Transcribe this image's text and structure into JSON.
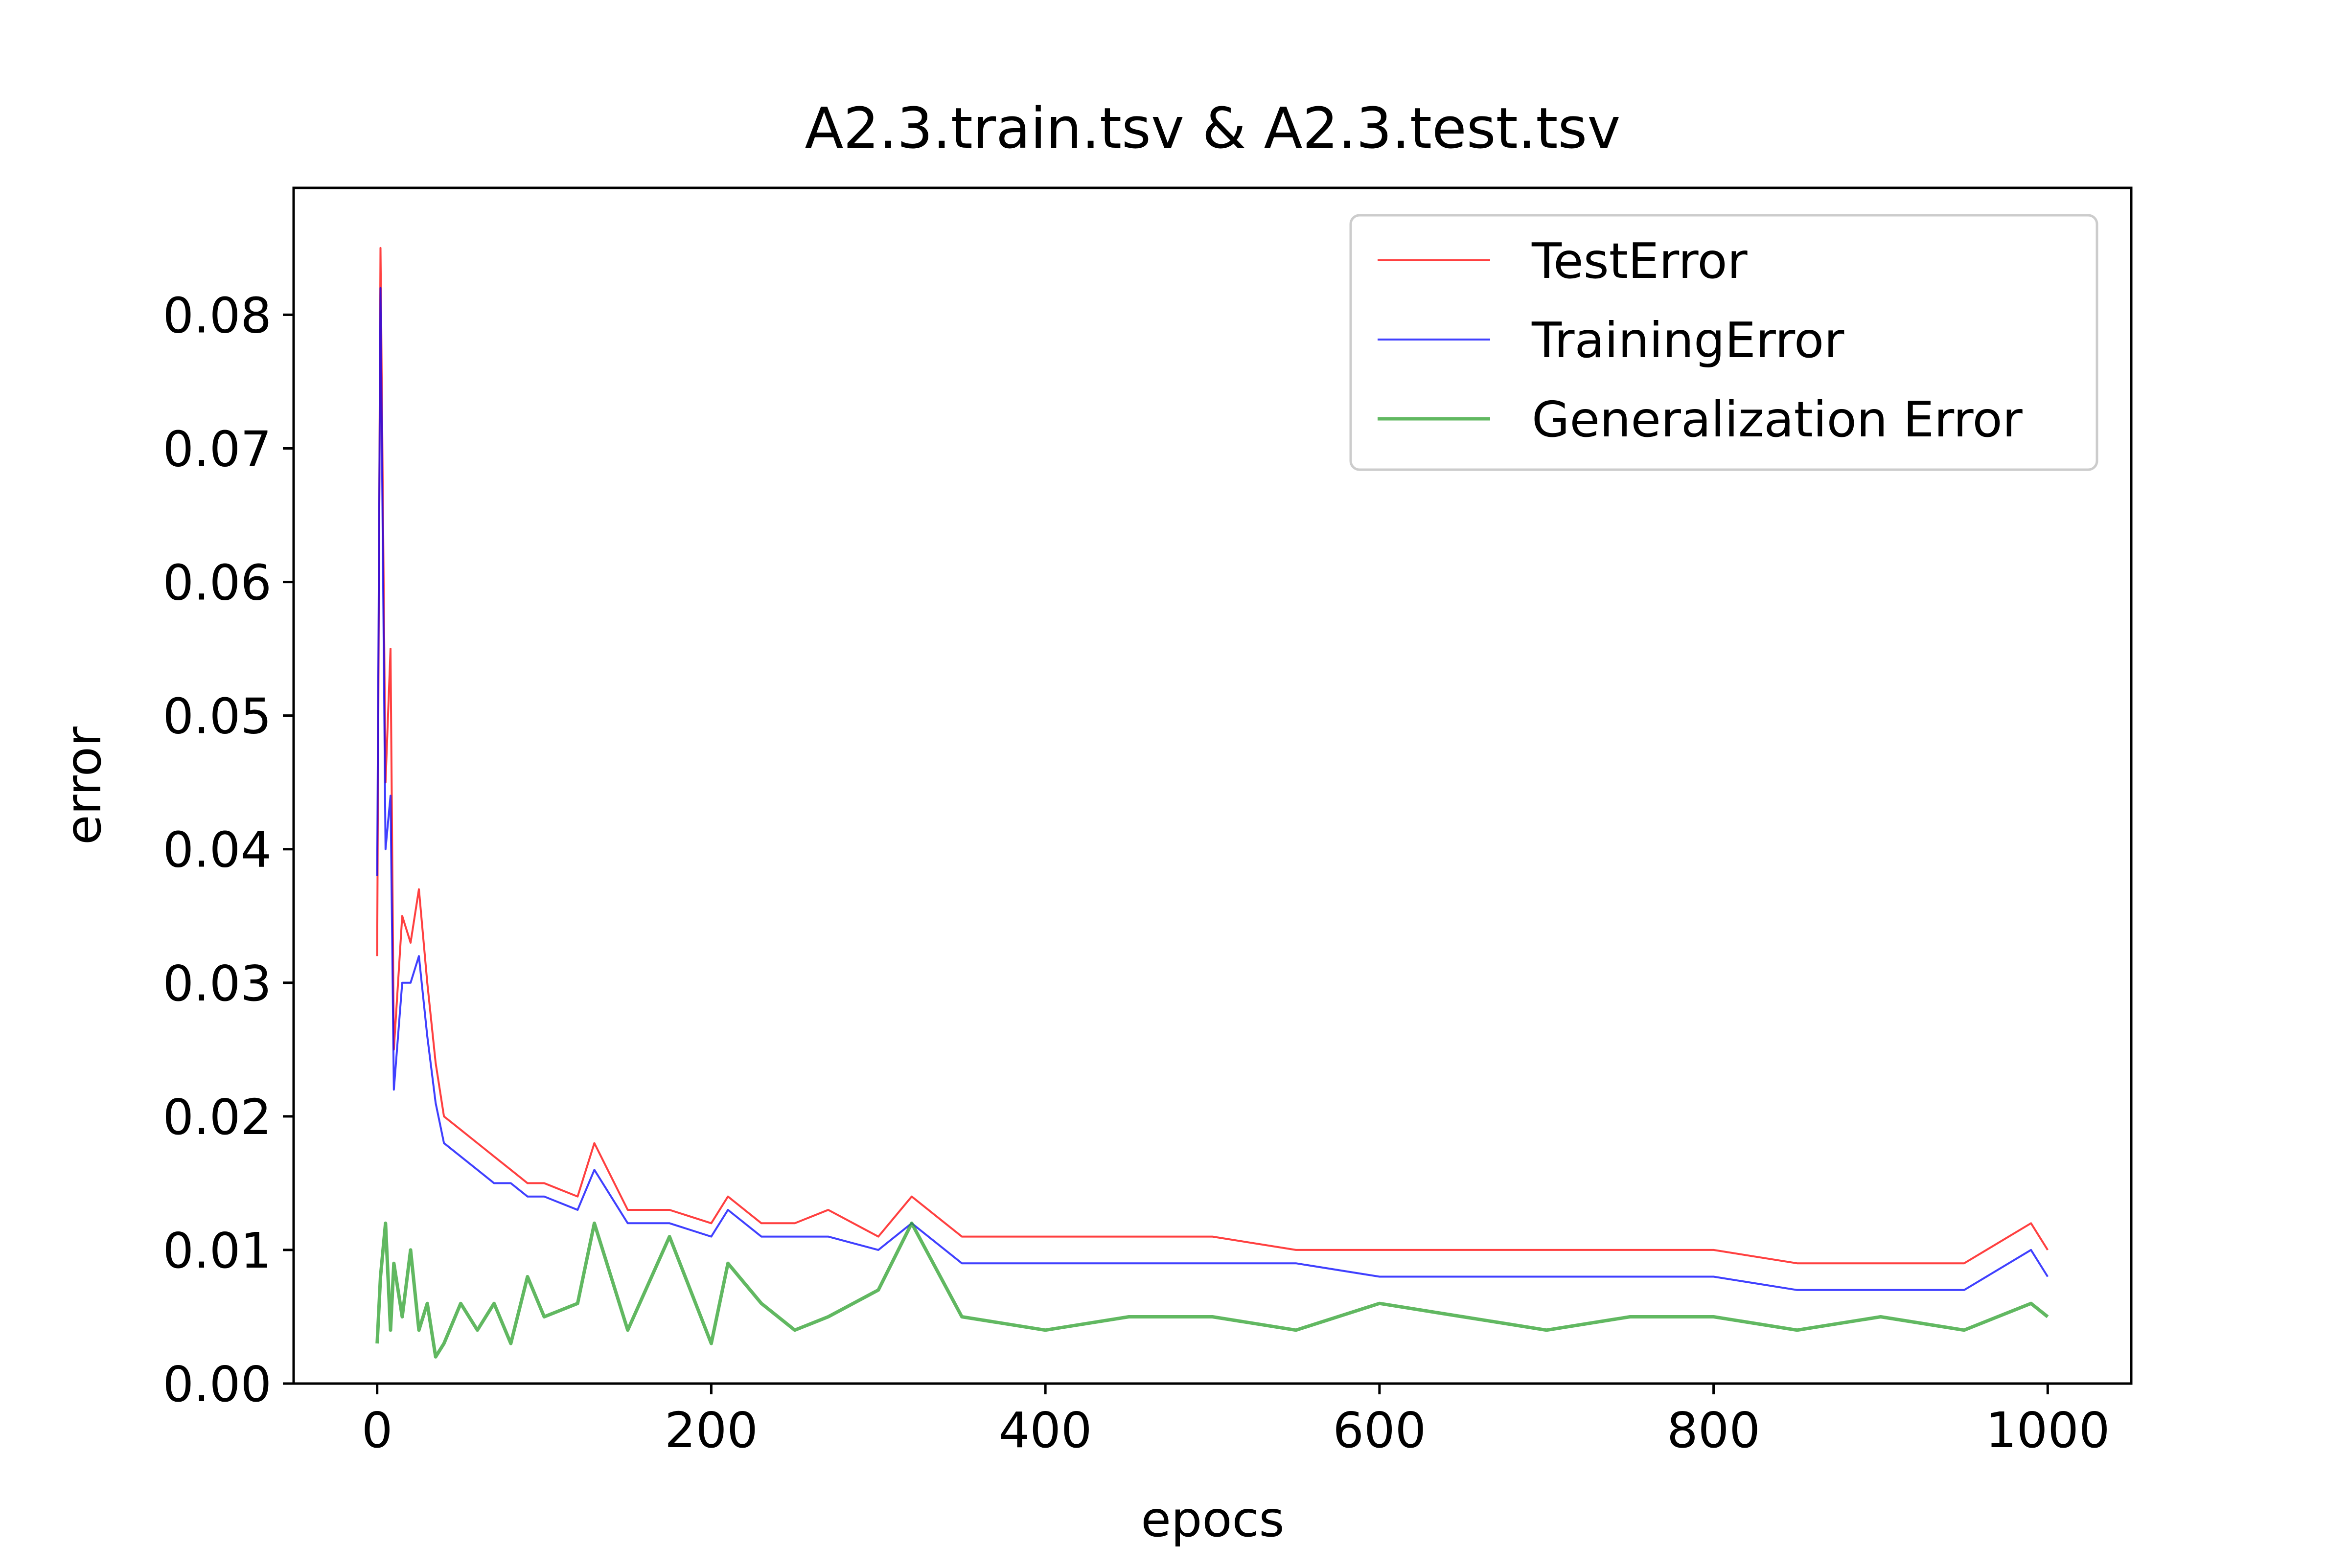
{
  "chart_data": {
    "type": "line",
    "title": "A2.3.train.tsv & A2.3.test.tsv",
    "xlabel": "epocs",
    "ylabel": "error",
    "xlim": [
      -50,
      1050
    ],
    "ylim": [
      0.0,
      0.0895
    ],
    "xticks": [
      0,
      200,
      400,
      600,
      800,
      1000
    ],
    "xtick_labels": [
      "0",
      "200",
      "400",
      "600",
      "800",
      "1000"
    ],
    "yticks": [
      0.0,
      0.01,
      0.02,
      0.03,
      0.04,
      0.05,
      0.06,
      0.07,
      0.08
    ],
    "ytick_labels": [
      "0.00",
      "0.01",
      "0.02",
      "0.03",
      "0.04",
      "0.05",
      "0.06",
      "0.07",
      "0.08"
    ],
    "grid": false,
    "legend_position": "upper right",
    "series": [
      {
        "name": "TestError",
        "color": "#ff0000",
        "x": [
          0,
          2,
          5,
          8,
          10,
          15,
          20,
          25,
          30,
          35,
          40,
          50,
          60,
          70,
          80,
          90,
          100,
          120,
          130,
          150,
          175,
          200,
          210,
          230,
          250,
          270,
          300,
          320,
          350,
          400,
          450,
          500,
          550,
          600,
          650,
          700,
          750,
          800,
          850,
          900,
          950,
          990,
          1000
        ],
        "y": [
          0.032,
          0.085,
          0.045,
          0.055,
          0.025,
          0.035,
          0.033,
          0.037,
          0.03,
          0.024,
          0.02,
          0.019,
          0.018,
          0.017,
          0.016,
          0.015,
          0.015,
          0.014,
          0.018,
          0.013,
          0.013,
          0.012,
          0.014,
          0.012,
          0.012,
          0.013,
          0.011,
          0.014,
          0.011,
          0.011,
          0.011,
          0.011,
          0.01,
          0.01,
          0.01,
          0.01,
          0.01,
          0.01,
          0.009,
          0.009,
          0.009,
          0.012,
          0.01
        ]
      },
      {
        "name": "TrainingError",
        "color": "#0000ff",
        "x": [
          0,
          2,
          5,
          8,
          10,
          15,
          20,
          25,
          30,
          35,
          40,
          50,
          60,
          70,
          80,
          90,
          100,
          120,
          130,
          150,
          175,
          200,
          210,
          230,
          250,
          270,
          300,
          320,
          350,
          400,
          450,
          500,
          550,
          600,
          650,
          700,
          750,
          800,
          850,
          900,
          950,
          990,
          1000
        ],
        "y": [
          0.038,
          0.082,
          0.04,
          0.044,
          0.022,
          0.03,
          0.03,
          0.032,
          0.026,
          0.021,
          0.018,
          0.017,
          0.016,
          0.015,
          0.015,
          0.014,
          0.014,
          0.013,
          0.016,
          0.012,
          0.012,
          0.011,
          0.013,
          0.011,
          0.011,
          0.011,
          0.01,
          0.012,
          0.009,
          0.009,
          0.009,
          0.009,
          0.009,
          0.008,
          0.008,
          0.008,
          0.008,
          0.008,
          0.007,
          0.007,
          0.007,
          0.01,
          0.008
        ]
      },
      {
        "name": "Generalization Error",
        "color": "#2ca02c",
        "x": [
          0,
          2,
          5,
          8,
          10,
          15,
          20,
          25,
          30,
          35,
          40,
          50,
          60,
          70,
          80,
          90,
          100,
          120,
          130,
          150,
          175,
          200,
          210,
          230,
          250,
          270,
          300,
          320,
          350,
          400,
          450,
          500,
          550,
          600,
          650,
          700,
          750,
          800,
          850,
          900,
          950,
          990,
          1000
        ],
        "y": [
          0.003,
          0.008,
          0.012,
          0.004,
          0.009,
          0.005,
          0.01,
          0.004,
          0.006,
          0.002,
          0.003,
          0.006,
          0.004,
          0.006,
          0.003,
          0.008,
          0.005,
          0.006,
          0.012,
          0.004,
          0.011,
          0.003,
          0.009,
          0.006,
          0.004,
          0.005,
          0.007,
          0.012,
          0.005,
          0.004,
          0.005,
          0.005,
          0.004,
          0.006,
          0.005,
          0.004,
          0.005,
          0.005,
          0.004,
          0.005,
          0.004,
          0.006,
          0.005
        ]
      }
    ]
  }
}
